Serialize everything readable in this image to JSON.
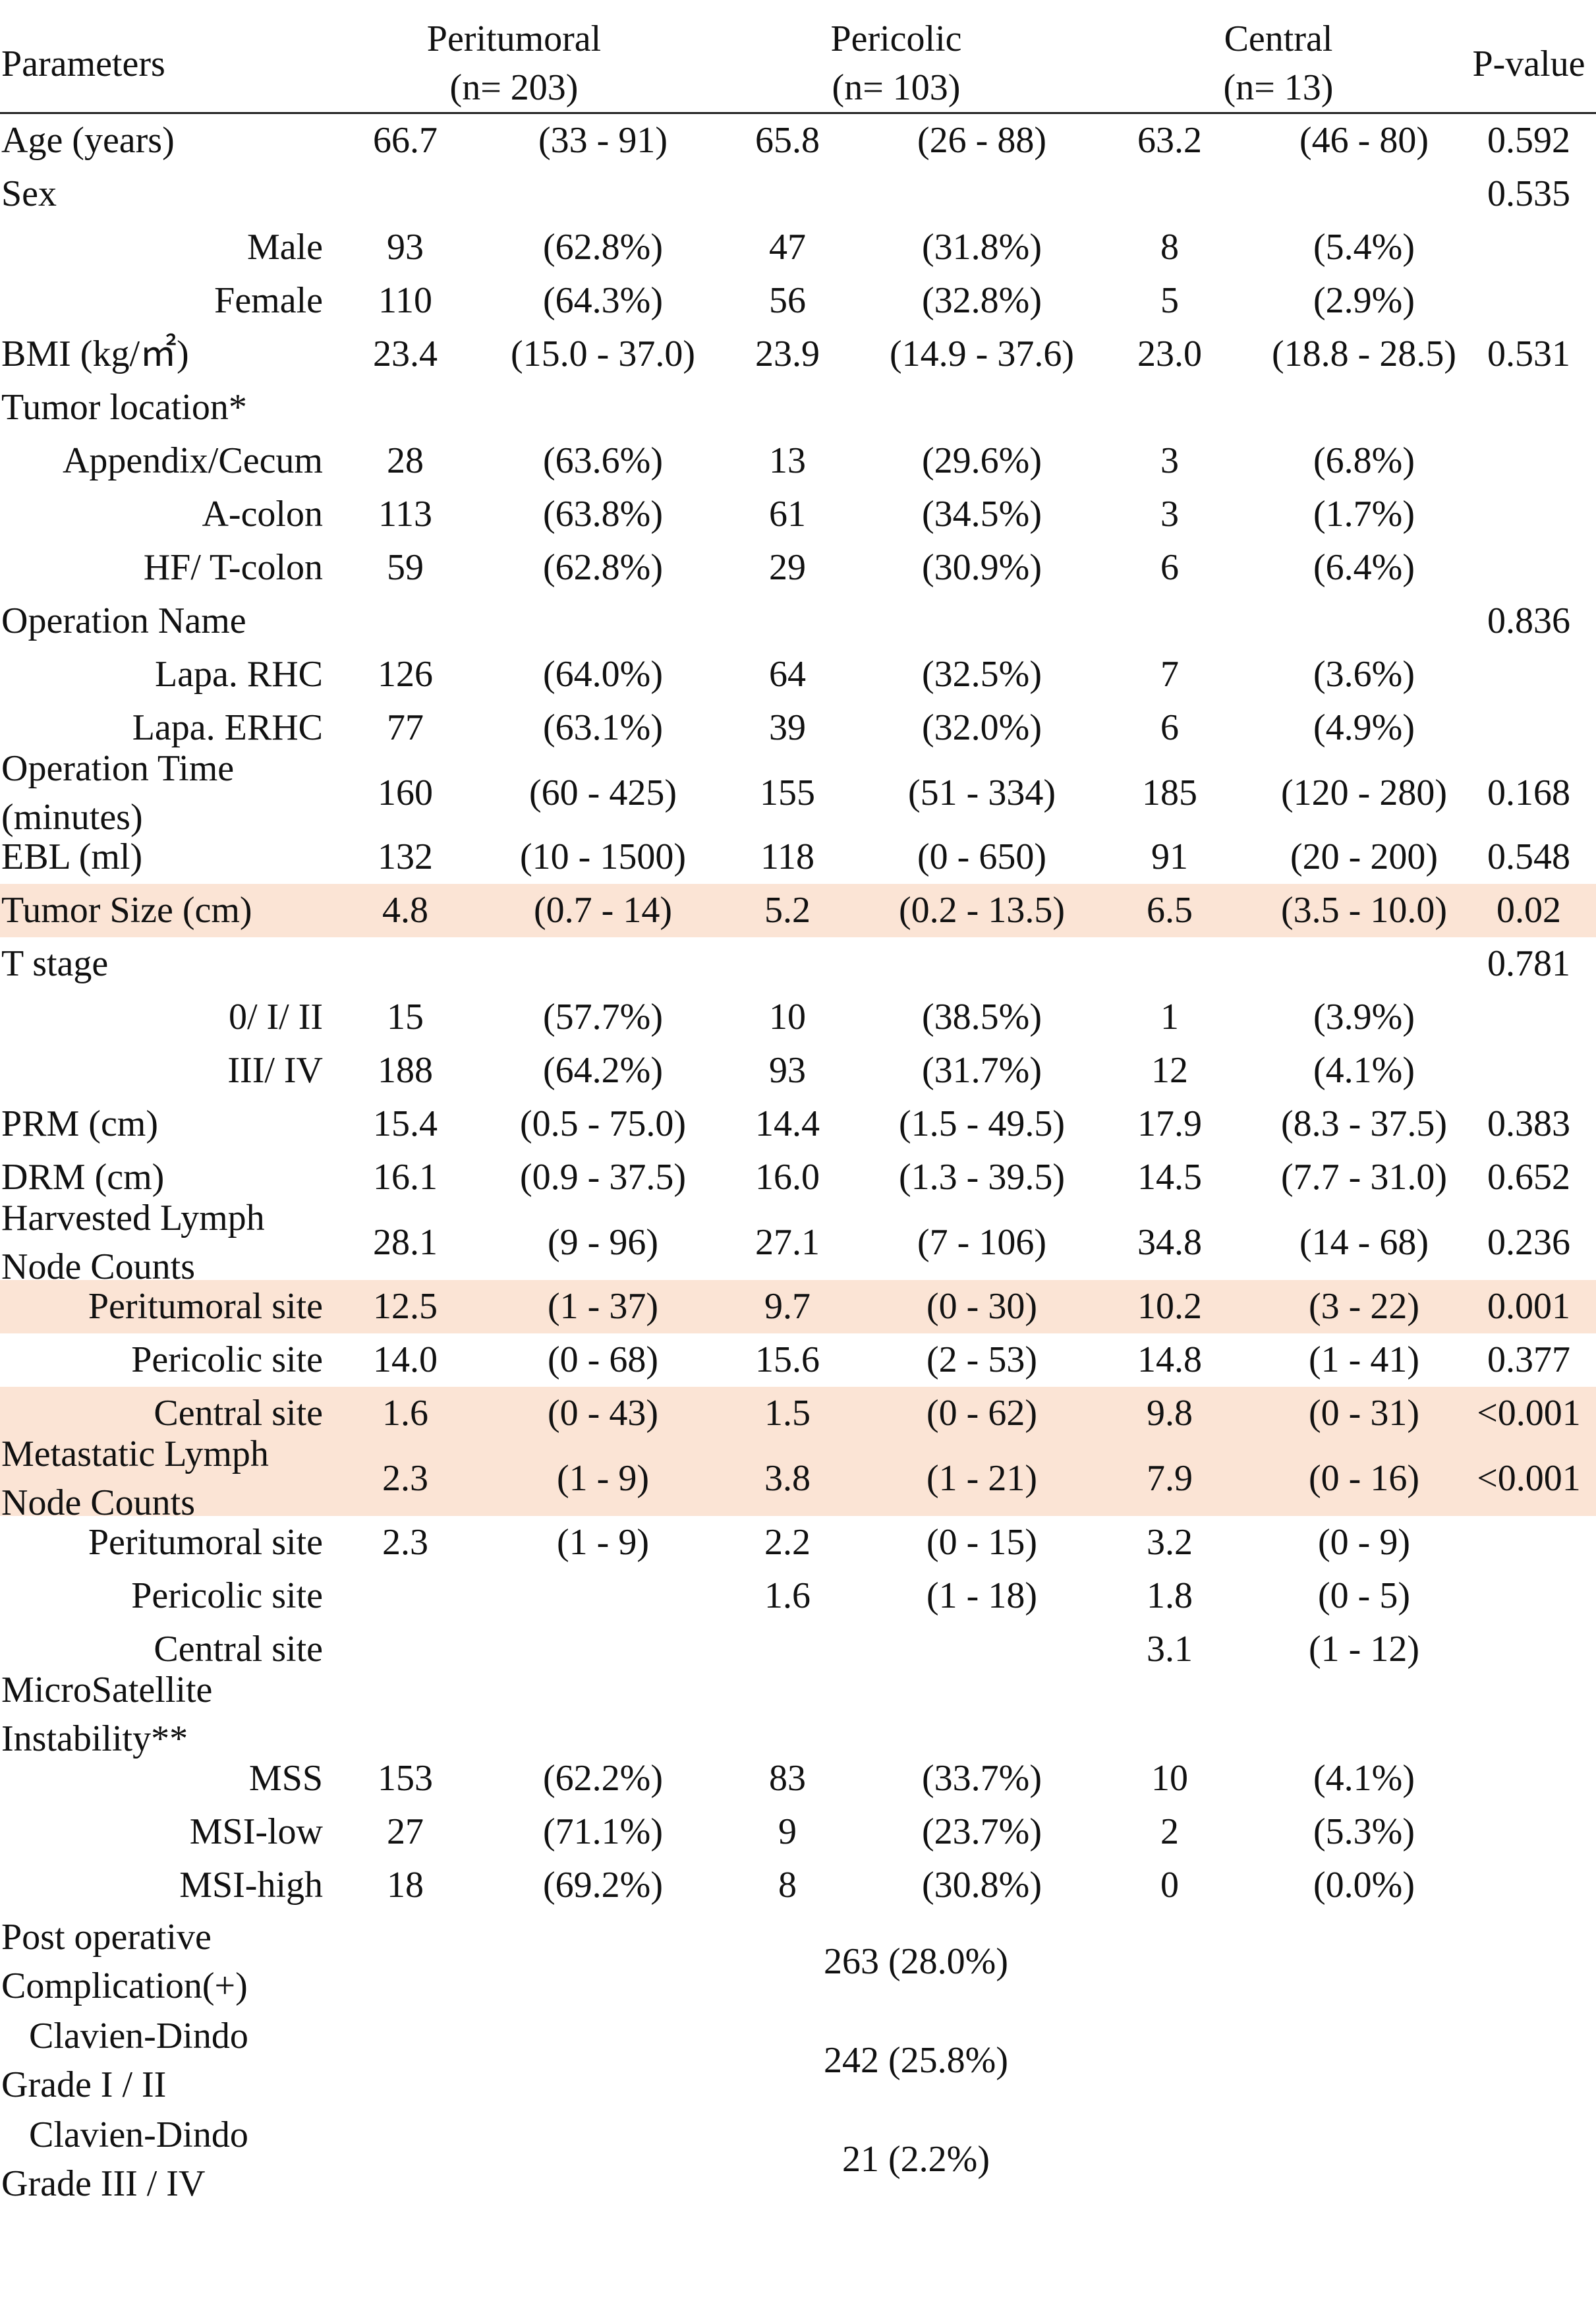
{
  "header": {
    "parameters": "Parameters",
    "groups": [
      {
        "name": "Peritumoral",
        "n": "(n= 203)"
      },
      {
        "name": "Pericolic",
        "n": "(n= 103)"
      },
      {
        "name": "Central",
        "n": "(n= 13)"
      }
    ],
    "pvalue": "P-value"
  },
  "rows": [
    {
      "label": "Age (years)",
      "v1": "66.7",
      "r1": "(33 - 91)",
      "v2": "65.8",
      "r2": "(26 - 88)",
      "v3": "63.2",
      "r3": "(46 - 80)",
      "p": "0.592"
    },
    {
      "label": "Sex",
      "p": "0.535"
    },
    {
      "label": "Male",
      "indent": true,
      "v1": "93",
      "r1": "(62.8%)",
      "v2": "47",
      "r2": "(31.8%)",
      "v3": "8",
      "r3": "(5.4%)"
    },
    {
      "label": "Female",
      "indent": true,
      "v1": "110",
      "r1": "(64.3%)",
      "v2": "56",
      "r2": "(32.8%)",
      "v3": "5",
      "r3": "(2.9%)"
    },
    {
      "label": "BMI (kg/㎡)",
      "v1": "23.4",
      "r1": "(15.0 - 37.0)",
      "v2": "23.9",
      "r2": "(14.9 - 37.6)",
      "v3": "23.0",
      "r3": "(18.8 - 28.5)",
      "p": "0.531"
    },
    {
      "label": "Tumor location*"
    },
    {
      "label": "Appendix/Cecum",
      "indent": true,
      "v1": "28",
      "r1": "(63.6%)",
      "v2": "13",
      "r2": "(29.6%)",
      "v3": "3",
      "r3": "(6.8%)"
    },
    {
      "label": "A-colon",
      "indent": true,
      "v1": "113",
      "r1": "(63.8%)",
      "v2": "61",
      "r2": "(34.5%)",
      "v3": "3",
      "r3": "(1.7%)"
    },
    {
      "label": "HF/ T-colon",
      "indent": true,
      "v1": "59",
      "r1": "(62.8%)",
      "v2": "29",
      "r2": "(30.9%)",
      "v3": "6",
      "r3": "(6.4%)"
    },
    {
      "label": "Operation Name",
      "p": "0.836"
    },
    {
      "label": "Lapa. RHC",
      "indent": true,
      "v1": "126",
      "r1": "(64.0%)",
      "v2": "64",
      "r2": "(32.5%)",
      "v3": "7",
      "r3": "(3.6%)"
    },
    {
      "label": "Lapa. ERHC",
      "indent": true,
      "v1": "77",
      "r1": "(63.1%)",
      "v2": "39",
      "r2": "(32.0%)",
      "v3": "6",
      "r3": "(4.9%)"
    },
    {
      "label": "Operation Time",
      "label2": "(minutes)",
      "tall": true,
      "v1": "160",
      "r1": "(60 - 425)",
      "v2": "155",
      "r2": "(51 - 334)",
      "v3": "185",
      "r3": "(120 - 280)",
      "p": "0.168"
    },
    {
      "label": "EBL (ml)",
      "v1": "132",
      "r1": "(10 - 1500)",
      "v2": "118",
      "r2": "(0 - 650)",
      "v3": "91",
      "r3": "(20 - 200)",
      "p": "0.548"
    },
    {
      "label": "Tumor Size (cm)",
      "hl": true,
      "v1": "4.8",
      "r1": "(0.7 - 14)",
      "v2": "5.2",
      "r2": "(0.2 - 13.5)",
      "v3": "6.5",
      "r3": "(3.5 - 10.0)",
      "p": "0.02"
    },
    {
      "label": "T stage",
      "p": "0.781"
    },
    {
      "label": "0/ I/ II",
      "indent": true,
      "v1": "15",
      "r1": "(57.7%)",
      "v2": "10",
      "r2": "(38.5%)",
      "v3": "1",
      "r3": "(3.9%)"
    },
    {
      "label": "III/ IV",
      "indent": true,
      "v1": "188",
      "r1": "(64.2%)",
      "v2": "93",
      "r2": "(31.7%)",
      "v3": "12",
      "r3": "(4.1%)"
    },
    {
      "label": "PRM (cm)",
      "v1": "15.4",
      "r1": "(0.5 - 75.0)",
      "v2": "14.4",
      "r2": "(1.5 - 49.5)",
      "v3": "17.9",
      "r3": "(8.3 - 37.5)",
      "p": "0.383"
    },
    {
      "label": "DRM (cm)",
      "v1": "16.1",
      "r1": "(0.9 - 37.5)",
      "v2": "16.0",
      "r2": "(1.3 - 39.5)",
      "v3": "14.5",
      "r3": "(7.7 - 31.0)",
      "p": "0.652"
    },
    {
      "label": "Harvested Lymph",
      "label2": "Node Counts",
      "tall": true,
      "v1": "28.1",
      "r1": "(9 - 96)",
      "v2": "27.1",
      "r2": "(7 - 106)",
      "v3": "34.8",
      "r3": "(14 - 68)",
      "p": "0.236"
    },
    {
      "label": "Peritumoral site",
      "indent": true,
      "hl": true,
      "v1": "12.5",
      "r1": "(1 - 37)",
      "v2": "9.7",
      "r2": "(0 - 30)",
      "v3": "10.2",
      "r3": "(3 - 22)",
      "p": "0.001"
    },
    {
      "label": "Pericolic site",
      "indent": true,
      "v1": "14.0",
      "r1": "(0 - 68)",
      "v2": "15.6",
      "r2": "(2 - 53)",
      "v3": "14.8",
      "r3": "(1 - 41)",
      "p": "0.377"
    },
    {
      "label": "Central site",
      "indent": true,
      "hl": true,
      "v1": "1.6",
      "r1": "(0 - 43)",
      "v2": "1.5",
      "r2": "(0 - 62)",
      "v3": "9.8",
      "r3": "(0 - 31)",
      "p": "<0.001"
    },
    {
      "label": "Metastatic Lymph",
      "label2": "Node Counts",
      "tall": true,
      "hl": true,
      "v1": "2.3",
      "r1": "(1 - 9)",
      "v2": "3.8",
      "r2": "(1 - 21)",
      "v3": "7.9",
      "r3": "(0 - 16)",
      "p": "<0.001"
    },
    {
      "label": "Peritumoral site",
      "indent": true,
      "v1": "2.3",
      "r1": "(1 - 9)",
      "v2": "2.2",
      "r2": "(0 - 15)",
      "v3": "3.2",
      "r3": "(0 - 9)"
    },
    {
      "label": "Pericolic site",
      "indent": true,
      "v2": "1.6",
      "r2": "(1 - 18)",
      "v3": "1.8",
      "r3": "(0 - 5)"
    },
    {
      "label": "Central site",
      "indent": true,
      "v3": "3.1",
      "r3": "(1 - 12)"
    },
    {
      "label": "MicroSatellite",
      "label2": "Instability**",
      "tall": true
    },
    {
      "label": "MSS",
      "indent": true,
      "v1": "153",
      "r1": "(62.2%)",
      "v2": "83",
      "r2": "(33.7%)",
      "v3": "10",
      "r3": "(4.1%)"
    },
    {
      "label": "MSI-low",
      "indent": true,
      "v1": "27",
      "r1": "(71.1%)",
      "v2": "9",
      "r2": "(23.7%)",
      "v3": "2",
      "r3": "(5.3%)"
    },
    {
      "label": "MSI-high",
      "indent": true,
      "v1": "18",
      "r1": "(69.2%)",
      "v2": "8",
      "r2": "(30.8%)",
      "v3": "0",
      "r3": "(0.0%)"
    },
    {
      "label": "Post operative",
      "label2": "Complication(+)",
      "two": true,
      "span": "263 (28.0%)"
    },
    {
      "label": "   Clavien-Dindo",
      "label2": "Grade I / II",
      "two": true,
      "span": "242 (25.8%)"
    },
    {
      "label": "   Clavien-Dindo",
      "label2": "Grade III / IV",
      "two": true,
      "span": "21 (2.2%)"
    }
  ]
}
